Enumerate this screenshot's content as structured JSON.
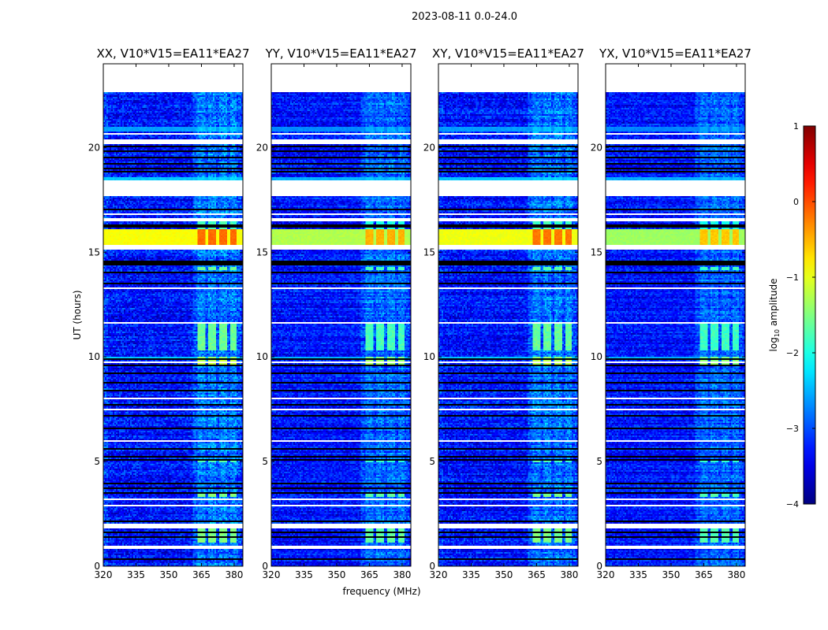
{
  "chart_data": {
    "type": "heatmap",
    "title": "2023-08-11 0.0-24.0",
    "xlabel": "frequency (MHz)",
    "ylabel": "UT (hours)",
    "xlim": [
      320,
      384
    ],
    "ylim": [
      0,
      24
    ],
    "xticks": [
      320,
      335,
      350,
      365,
      380
    ],
    "yticks": [
      0,
      5,
      10,
      15,
      20
    ],
    "colorbar": {
      "label_main": "log",
      "label_sub": "10",
      "label_rest": " amplitude",
      "range": [
        -4,
        1
      ],
      "ticks": [
        1,
        0,
        -1,
        -2,
        -3,
        -4
      ],
      "colormap": "jet"
    },
    "panels": [
      {
        "title": "XX, V10*V15=EA11*EA27",
        "gain": 1.0,
        "band_boost": 0.0,
        "lowfreq_boost": 0.25
      },
      {
        "title": "YY, V10*V15=EA11*EA27",
        "gain": 0.85,
        "band_boost": -0.35,
        "lowfreq_boost": 0.0
      },
      {
        "title": "XY, V10*V15=EA11*EA27",
        "gain": 0.95,
        "band_boost": -0.05,
        "lowfreq_boost": 0.15
      },
      {
        "title": "YX, V10*V15=EA11*EA27",
        "gain": 0.8,
        "band_boost": -0.45,
        "lowfreq_boost": 0.0
      }
    ],
    "background_level": -3.3,
    "rfi_columns_mhz": [
      [
        363,
        367
      ],
      [
        368,
        372
      ],
      [
        373,
        377
      ],
      [
        378,
        381
      ]
    ],
    "rfi_region_mhz": [
      361,
      383
    ],
    "masked_hours": [
      [
        22.65,
        24
      ],
      [
        20.6,
        20.7
      ],
      [
        20.15,
        20.4
      ],
      [
        17.7,
        18.45
      ],
      [
        16.5,
        16.65
      ],
      [
        15.15,
        15.35
      ],
      [
        1.8,
        2.0
      ],
      [
        0.8,
        0.97
      ]
    ],
    "flagged_hours": [
      [
        14.4,
        14.6
      ],
      [
        20.0,
        20.05
      ],
      [
        19.8,
        19.83
      ],
      [
        19.5,
        19.53
      ],
      [
        19.2,
        19.23
      ],
      [
        19.0,
        19.05
      ],
      [
        18.85,
        18.9
      ],
      [
        17.0,
        17.03
      ],
      [
        16.3,
        16.34
      ],
      [
        16.2,
        16.23
      ],
      [
        14.0,
        14.03
      ],
      [
        13.5,
        13.53
      ],
      [
        13.0,
        13.03
      ],
      [
        9.85,
        9.88
      ],
      [
        9.6,
        9.64
      ],
      [
        9.2,
        9.23
      ],
      [
        8.75,
        8.78
      ],
      [
        8.4,
        8.43
      ],
      [
        7.7,
        7.73
      ],
      [
        7.2,
        7.24
      ],
      [
        6.6,
        6.63
      ],
      [
        5.6,
        5.64
      ],
      [
        5.2,
        5.24
      ],
      [
        5.05,
        5.09
      ],
      [
        3.9,
        3.93
      ],
      [
        3.7,
        3.73
      ],
      [
        3.5,
        3.53
      ],
      [
        2.1,
        2.13
      ],
      [
        1.6,
        1.63
      ],
      [
        1.4,
        1.43
      ],
      [
        0.3,
        0.32
      ]
    ],
    "thin_masked_hours": [
      21.9,
      21.6,
      17.6,
      16.8,
      14.75,
      13.3,
      12.5,
      11.6,
      9.72,
      8.0,
      7.5,
      6.0,
      4.9,
      3.2,
      2.9
    ],
    "bright_bands": [
      {
        "hours": [
          15.35,
          16.1
        ],
        "level": -0.9,
        "rfi_level": -0.15
      },
      {
        "hours": [
          20.8,
          21.0
        ],
        "level": -2.6,
        "rfi_level": -2.4
      },
      {
        "hours": [
          18.45,
          18.6
        ],
        "level": -2.4,
        "rfi_level": -2.3
      },
      {
        "hours": [
          9.9,
          10.0
        ],
        "level": -2.4,
        "rfi_level": -1.4
      }
    ],
    "rfi_blocks": [
      {
        "hours": [
          9.6,
          9.85
        ],
        "level": -1.2
      },
      {
        "hours": [
          10.3,
          11.6
        ],
        "level": -1.6
      },
      {
        "hours": [
          1.1,
          1.8
        ],
        "level": -1.5
      },
      {
        "hours": [
          3.3,
          3.5
        ],
        "level": -1.5
      },
      {
        "hours": [
          4.95,
          5.15
        ],
        "level": -1.7
      },
      {
        "hours": [
          14.15,
          14.3
        ],
        "level": -1.6
      },
      {
        "hours": [
          16.1,
          16.45
        ],
        "level": -1.8
      }
    ]
  }
}
